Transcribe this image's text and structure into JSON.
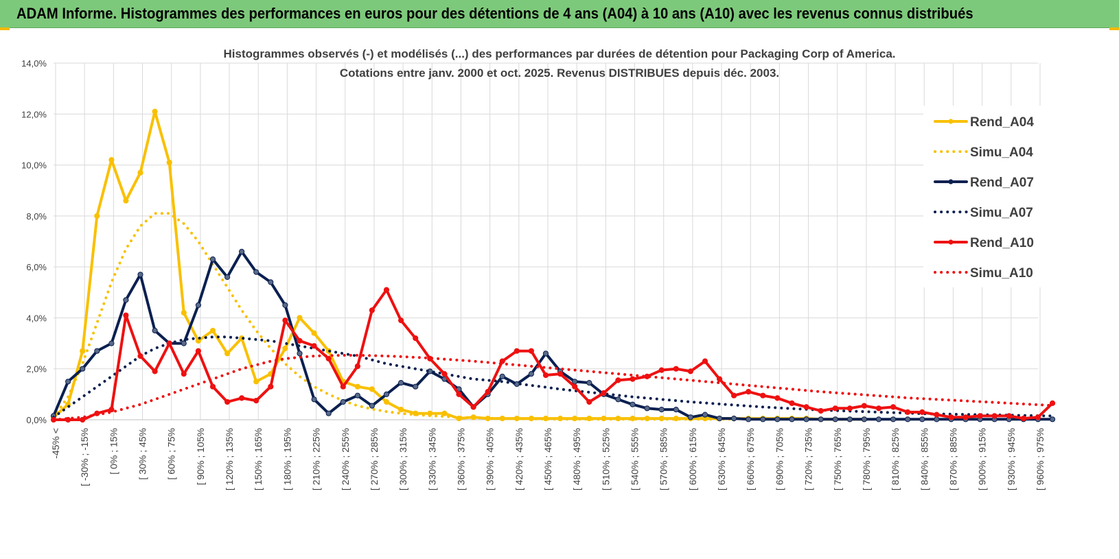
{
  "header": {
    "title": "ADAM Informe. Histogrammes des performances en euros pour des détentions de 4 ans (A04) à 10 ans (A10) avec les revenus connus distribués"
  },
  "colors": {
    "header_bg": "#7dc97b",
    "A04": "#f9c000",
    "A07": "#0b2050",
    "A10": "#ee1111",
    "grid": "#d9d9d9"
  },
  "chart_data": {
    "type": "line",
    "title_line1": "Histogrammes observés (-) et modélisés (...) des performances par durées de détention pour Packaging Corp of America.",
    "title_line2": "Cotations entre janv. 2000 et oct. 2025. Revenus DISTRIBUES depuis déc. 2003.",
    "ylim": [
      0,
      14
    ],
    "y_ticks": [
      "0,0%",
      "2,0%",
      "4,0%",
      "6,0%",
      "8,0%",
      "10,0%",
      "12,0%",
      "14,0%"
    ],
    "category_labels": [
      "-45% <",
      "[ -30% ; -15%",
      "[ 0% ; 15%",
      "[ 30% ; 45%",
      "[ 60% ; 75%",
      "[ 90% ; 105%",
      "[ 120% ; 135%",
      "[ 150% ; 165%",
      "[ 180% ; 195%",
      "[ 210% ; 225%",
      "[ 240% ; 255%",
      "[ 270% ; 285%",
      "[ 300% ; 315%",
      "[ 330% ; 345%",
      "[ 360% ; 375%",
      "[ 390% ; 405%",
      "[ 420% ; 435%",
      "[ 450% ; 465%",
      "[ 480% ; 495%",
      "[ 510% ; 525%",
      "[ 540% ; 555%",
      "[ 570% ; 585%",
      "[ 600% ; 615%",
      "[ 630% ; 645%",
      "[ 660% ; 675%",
      "[ 690% ; 705%",
      "[ 720% ; 735%",
      "[ 750% ; 765%",
      "[ 780% ; 795%",
      "[ 810% ; 825%",
      "[ 840% ; 855%",
      "[ 870% ; 885%",
      "[ 900% ; 915%",
      "[ 930% ; 945%",
      "[ 960% ; 975%"
    ],
    "legend_position": "right",
    "series": [
      {
        "name": "Rend_A04",
        "style": "solid",
        "color": "#f9c000",
        "values": [
          0.1,
          0.6,
          2.7,
          8.0,
          10.2,
          8.6,
          9.7,
          12.1,
          10.1,
          4.2,
          3.1,
          3.5,
          2.6,
          3.2,
          1.5,
          1.8,
          2.8,
          4.0,
          3.4,
          2.7,
          1.5,
          1.3,
          1.2,
          0.7,
          0.4,
          0.25,
          0.25,
          0.25,
          0.05,
          0.1,
          0.05,
          0.05,
          0.05,
          0.05,
          0.05,
          0.05,
          0.05,
          0.05,
          0.05,
          0.05,
          0.05,
          0.05,
          0.05,
          0.05,
          0.05,
          0.05,
          0.05,
          0.05,
          0.05,
          0.05,
          0.05,
          0.05,
          0.05,
          0.02,
          0.02,
          0.02,
          0.02
        ]
      },
      {
        "name": "Simu_A04",
        "style": "dotted",
        "color": "#f9c000",
        "values": [
          0.1,
          0.9,
          2.2,
          3.8,
          5.4,
          6.7,
          7.6,
          8.1,
          8.1,
          7.7,
          7.0,
          6.1,
          5.2,
          4.3,
          3.5,
          2.8,
          2.2,
          1.7,
          1.3,
          1.0,
          0.75,
          0.55,
          0.42,
          0.32,
          0.25,
          0.2,
          0.16,
          0.13,
          0.1,
          0.08,
          0.06,
          0.05,
          0.04,
          0.03,
          0.03,
          0.02,
          0.02,
          0.02,
          0.02,
          0.02,
          0.02,
          0.02,
          0.02,
          0.02,
          0.02,
          0.02,
          0.02,
          0.02
        ]
      },
      {
        "name": "Rend_A07",
        "style": "solid",
        "color": "#0b2050",
        "values": [
          0.15,
          1.5,
          2.0,
          2.7,
          3.0,
          4.7,
          5.7,
          3.5,
          3.0,
          3.0,
          4.5,
          6.3,
          5.6,
          6.6,
          5.8,
          5.4,
          4.5,
          2.6,
          0.8,
          0.25,
          0.7,
          0.95,
          0.55,
          1.0,
          1.45,
          1.3,
          1.9,
          1.6,
          1.2,
          0.5,
          1.0,
          1.7,
          1.4,
          1.8,
          2.6,
          1.9,
          1.5,
          1.45,
          1.0,
          0.8,
          0.6,
          0.45,
          0.4,
          0.4,
          0.1,
          0.2,
          0.05,
          0.05,
          0.02,
          0.02,
          0.02,
          0.02,
          0.02,
          0.02,
          0.02,
          0.02,
          0.02,
          0.02,
          0.02,
          0.02,
          0.02,
          0.02,
          0.02,
          0.02,
          0.02,
          0.02,
          0.02,
          0.02,
          0.02,
          0.02
        ]
      },
      {
        "name": "Simu_A07",
        "style": "dotted",
        "color": "#0b2050",
        "values": [
          0.1,
          0.5,
          0.9,
          1.3,
          1.7,
          2.1,
          2.5,
          2.8,
          3.0,
          3.15,
          3.2,
          3.25,
          3.25,
          3.2,
          3.15,
          3.1,
          3.0,
          2.9,
          2.8,
          2.7,
          2.6,
          2.5,
          2.35,
          2.2,
          2.1,
          2.0,
          1.9,
          1.8,
          1.7,
          1.6,
          1.55,
          1.5,
          1.42,
          1.35,
          1.28,
          1.2,
          1.14,
          1.08,
          1.02,
          0.96,
          0.9,
          0.85,
          0.8,
          0.75,
          0.7,
          0.66,
          0.62,
          0.58,
          0.54,
          0.5,
          0.47,
          0.44,
          0.41,
          0.38,
          0.36,
          0.34,
          0.32,
          0.3,
          0.28,
          0.26,
          0.24,
          0.23,
          0.22,
          0.21,
          0.2,
          0.19,
          0.18,
          0.17,
          0.16,
          0.15
        ]
      },
      {
        "name": "Rend_A10",
        "style": "solid",
        "color": "#ee1111",
        "values": [
          0.0,
          0.0,
          0.0,
          0.25,
          0.4,
          4.1,
          2.5,
          1.9,
          3.0,
          1.8,
          2.7,
          1.3,
          0.7,
          0.85,
          0.75,
          1.3,
          3.9,
          3.1,
          2.9,
          2.4,
          1.3,
          2.1,
          4.3,
          5.1,
          3.9,
          3.2,
          2.4,
          1.8,
          1.0,
          0.5,
          1.1,
          2.3,
          2.7,
          2.7,
          1.75,
          1.8,
          1.3,
          0.7,
          1.05,
          1.55,
          1.6,
          1.7,
          1.95,
          2.0,
          1.9,
          2.3,
          1.6,
          0.95,
          1.1,
          0.95,
          0.85,
          0.65,
          0.5,
          0.35,
          0.45,
          0.45,
          0.55,
          0.45,
          0.5,
          0.3,
          0.3,
          0.2,
          0.1,
          0.1,
          0.15,
          0.15,
          0.15,
          0.05,
          0.1,
          0.65
        ]
      },
      {
        "name": "Simu_A10",
        "style": "dotted",
        "color": "#ee1111",
        "values": [
          0.0,
          0.05,
          0.1,
          0.2,
          0.3,
          0.45,
          0.6,
          0.8,
          1.0,
          1.2,
          1.4,
          1.6,
          1.8,
          2.0,
          2.15,
          2.3,
          2.4,
          2.45,
          2.5,
          2.52,
          2.53,
          2.53,
          2.52,
          2.5,
          2.48,
          2.45,
          2.42,
          2.38,
          2.34,
          2.3,
          2.25,
          2.2,
          2.15,
          2.1,
          2.05,
          2.0,
          1.95,
          1.9,
          1.85,
          1.8,
          1.75,
          1.7,
          1.65,
          1.6,
          1.55,
          1.5,
          1.45,
          1.4,
          1.35,
          1.3,
          1.25,
          1.2,
          1.15,
          1.1,
          1.06,
          1.02,
          0.98,
          0.94,
          0.9,
          0.86,
          0.83,
          0.8,
          0.77,
          0.74,
          0.71,
          0.68,
          0.65,
          0.62,
          0.59,
          0.56
        ]
      }
    ]
  }
}
